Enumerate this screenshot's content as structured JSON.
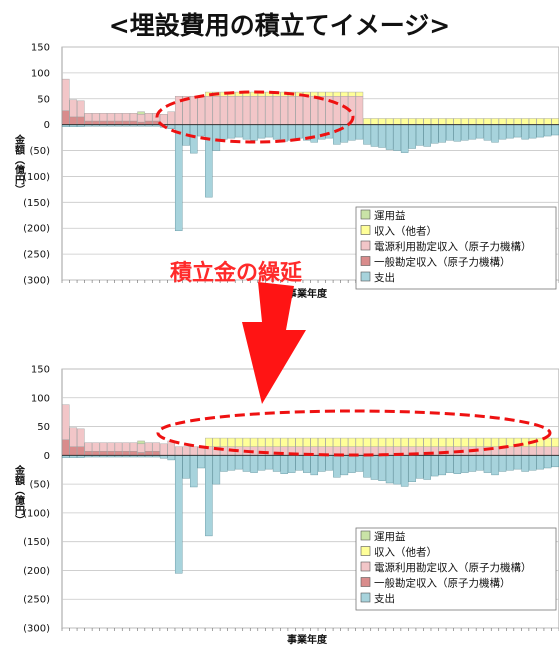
{
  "title": "<埋設費用の積立てイメージ>",
  "callout": "積立金の繰延",
  "colors": {
    "運用益": "#c9e3a7",
    "収入（他者）": "#ffff99",
    "電源利用勘定収入（原子力機構）": "#f2c6c8",
    "一般勘定収入（原子力機構）": "#d98c8c",
    "支出": "#a7d3dc",
    "highlight": "#ee1111"
  },
  "chart_data": [
    {
      "type": "bar",
      "stacked": true,
      "ylabel": "金額（億円）",
      "xlabel": "事業年度",
      "ylim": [
        -300,
        150
      ],
      "yticks": [
        150,
        100,
        50,
        0,
        -50,
        -100,
        -150,
        -200,
        -250,
        -300
      ],
      "ytick_labels": [
        "150",
        "100",
        "50",
        "0",
        "(50)",
        "(100)",
        "(150)",
        "(200)",
        "(250)",
        "(300)"
      ],
      "grid": true,
      "legend_position": "bottom-right",
      "legend": [
        "運用益",
        "収入（他者）",
        "電源利用勘定収入（原子力機構）",
        "一般勘定収入（原子力機構）",
        "支出"
      ],
      "x_count": 66,
      "series": [
        {
          "name": "一般勘定収入（原子力機構）",
          "values": [
            27,
            15,
            15,
            7,
            7,
            7,
            7,
            7,
            7,
            7,
            5,
            7,
            7,
            0,
            0,
            0,
            0,
            0,
            0,
            0,
            0,
            0,
            0,
            0,
            0,
            0,
            0,
            0,
            0,
            0,
            0,
            0,
            0,
            0,
            0,
            0,
            0,
            0,
            0,
            0,
            0,
            0,
            0,
            0,
            0,
            0,
            0,
            0,
            0,
            0,
            0,
            0,
            0,
            0,
            0,
            0,
            0,
            0,
            0,
            0,
            0,
            0,
            0,
            0,
            0,
            0
          ]
        },
        {
          "name": "電源利用勘定収入（原子力機構）",
          "values": [
            61,
            33,
            31,
            15,
            15,
            15,
            15,
            15,
            15,
            15,
            15,
            15,
            15,
            20,
            25,
            55,
            55,
            55,
            55,
            55,
            55,
            55,
            55,
            55,
            55,
            55,
            55,
            55,
            55,
            55,
            55,
            55,
            55,
            55,
            55,
            55,
            55,
            55,
            55,
            55,
            0,
            0,
            0,
            0,
            0,
            0,
            0,
            0,
            0,
            0,
            0,
            0,
            0,
            0,
            0,
            0,
            0,
            0,
            0,
            0,
            0,
            0,
            0,
            0,
            0,
            0
          ]
        },
        {
          "name": "収入（他者）",
          "values": [
            0,
            0,
            0,
            0,
            0,
            0,
            0,
            0,
            0,
            0,
            0,
            0,
            0,
            0,
            0,
            0,
            0,
            0,
            0,
            8,
            8,
            8,
            8,
            8,
            8,
            8,
            8,
            8,
            8,
            8,
            8,
            8,
            8,
            8,
            8,
            8,
            8,
            8,
            8,
            8,
            12,
            12,
            12,
            12,
            12,
            12,
            12,
            12,
            12,
            12,
            12,
            12,
            12,
            12,
            12,
            12,
            12,
            12,
            12,
            12,
            12,
            12,
            12,
            12,
            12,
            12
          ]
        },
        {
          "name": "運用益",
          "values": [
            0,
            0,
            0,
            0,
            0,
            0,
            0,
            0,
            0,
            0,
            5,
            0,
            0,
            0,
            0,
            0,
            0,
            0,
            0,
            0,
            0,
            0,
            0,
            0,
            0,
            0,
            0,
            0,
            0,
            0,
            0,
            0,
            0,
            0,
            0,
            0,
            0,
            0,
            0,
            0,
            0,
            0,
            0,
            0,
            0,
            0,
            0,
            0,
            0,
            0,
            0,
            0,
            0,
            0,
            0,
            0,
            0,
            0,
            0,
            0,
            0,
            0,
            0,
            0,
            0,
            0
          ]
        },
        {
          "name": "支出",
          "values": [
            -4,
            -4,
            -4,
            -3,
            -3,
            -3,
            -3,
            -3,
            -3,
            -3,
            -3,
            -3,
            -3,
            -5,
            -8,
            -205,
            -40,
            -55,
            -22,
            -140,
            -50,
            -28,
            -26,
            -24,
            -28,
            -30,
            -26,
            -24,
            -28,
            -32,
            -30,
            -26,
            -30,
            -34,
            -28,
            -26,
            -38,
            -34,
            -30,
            -28,
            -38,
            -42,
            -44,
            -48,
            -50,
            -54,
            -46,
            -40,
            -42,
            -36,
            -34,
            -30,
            -32,
            -30,
            -28,
            -26,
            -30,
            -34,
            -28,
            -26,
            -24,
            -28,
            -26,
            -24,
            -22,
            -20
          ]
        }
      ]
    },
    {
      "type": "bar",
      "stacked": true,
      "ylabel": "金額（億円）",
      "xlabel": "事業年度",
      "ylim": [
        -300,
        150
      ],
      "yticks": [
        150,
        100,
        50,
        0,
        -50,
        -100,
        -150,
        -200,
        -250,
        -300
      ],
      "ytick_labels": [
        "150",
        "100",
        "50",
        "0",
        "(50)",
        "(100)",
        "(150)",
        "(200)",
        "(250)",
        "(300)"
      ],
      "grid": true,
      "legend_position": "bottom-right",
      "legend": [
        "運用益",
        "収入（他者）",
        "電源利用勘定収入（原子力機構）",
        "一般勘定収入（原子力機構）",
        "支出"
      ],
      "x_count": 66,
      "series": [
        {
          "name": "一般勘定収入（原子力機構）",
          "values": [
            27,
            15,
            15,
            7,
            7,
            7,
            7,
            7,
            7,
            7,
            5,
            7,
            7,
            0,
            0,
            0,
            0,
            0,
            0,
            0,
            0,
            0,
            0,
            0,
            0,
            0,
            0,
            0,
            0,
            0,
            0,
            0,
            0,
            0,
            0,
            0,
            0,
            0,
            0,
            0,
            0,
            0,
            0,
            0,
            0,
            0,
            0,
            0,
            0,
            0,
            0,
            0,
            0,
            0,
            0,
            0,
            0,
            0,
            0,
            0,
            0,
            0,
            0,
            0,
            0,
            0
          ]
        },
        {
          "name": "電源利用勘定収入（原子力機構）",
          "values": [
            61,
            33,
            31,
            15,
            15,
            15,
            15,
            15,
            15,
            15,
            15,
            15,
            15,
            20,
            25,
            15,
            15,
            15,
            15,
            15,
            15,
            15,
            15,
            15,
            15,
            15,
            15,
            15,
            15,
            15,
            15,
            15,
            15,
            15,
            15,
            15,
            15,
            15,
            15,
            15,
            15,
            15,
            15,
            15,
            15,
            15,
            15,
            15,
            15,
            15,
            15,
            15,
            15,
            15,
            15,
            15,
            15,
            15,
            15,
            15,
            15,
            15,
            15,
            15,
            15,
            15
          ]
        },
        {
          "name": "収入（他者）",
          "values": [
            0,
            0,
            0,
            0,
            0,
            0,
            0,
            0,
            0,
            0,
            0,
            0,
            0,
            0,
            0,
            0,
            0,
            0,
            0,
            15,
            15,
            15,
            15,
            15,
            15,
            15,
            15,
            15,
            15,
            15,
            15,
            15,
            15,
            15,
            15,
            15,
            15,
            15,
            15,
            15,
            15,
            15,
            15,
            15,
            15,
            15,
            15,
            15,
            15,
            15,
            15,
            15,
            15,
            15,
            15,
            15,
            15,
            15,
            15,
            15,
            15,
            15,
            15,
            15,
            15,
            15
          ]
        },
        {
          "name": "運用益",
          "values": [
            0,
            0,
            0,
            0,
            0,
            0,
            0,
            0,
            0,
            0,
            5,
            0,
            0,
            0,
            0,
            0,
            0,
            0,
            0,
            0,
            0,
            0,
            0,
            0,
            0,
            0,
            0,
            0,
            0,
            0,
            0,
            0,
            0,
            0,
            0,
            0,
            0,
            0,
            0,
            0,
            0,
            0,
            0,
            0,
            0,
            0,
            0,
            0,
            0,
            0,
            0,
            0,
            0,
            0,
            0,
            0,
            0,
            0,
            0,
            0,
            0,
            0,
            0,
            0,
            0,
            0
          ]
        },
        {
          "name": "支出",
          "values": [
            -4,
            -4,
            -4,
            -3,
            -3,
            -3,
            -3,
            -3,
            -3,
            -3,
            -3,
            -3,
            -3,
            -5,
            -8,
            -205,
            -40,
            -55,
            -22,
            -140,
            -50,
            -28,
            -26,
            -24,
            -28,
            -30,
            -26,
            -24,
            -28,
            -32,
            -30,
            -26,
            -30,
            -34,
            -28,
            -26,
            -38,
            -34,
            -30,
            -28,
            -38,
            -42,
            -44,
            -48,
            -50,
            -54,
            -46,
            -40,
            -42,
            -36,
            -34,
            -30,
            -32,
            -30,
            -28,
            -26,
            -30,
            -34,
            -28,
            -26,
            -24,
            -28,
            -26,
            -24,
            -22,
            -20
          ]
        }
      ]
    }
  ]
}
